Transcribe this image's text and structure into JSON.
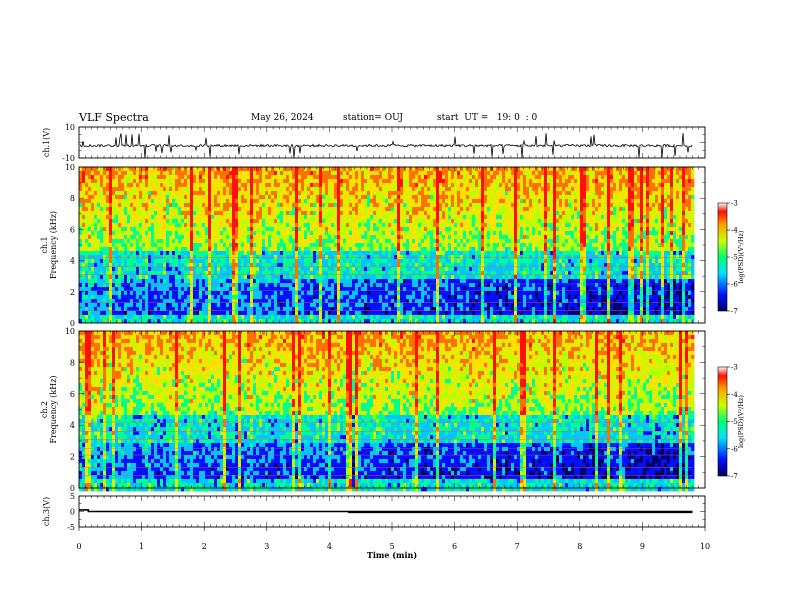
{
  "header": {
    "title": "VLF Spectra",
    "date": "May 26, 2024",
    "station": "station= OUJ",
    "start": "start  UT =   19: 0  : 0"
  },
  "chart_data": [
    {
      "type": "line",
      "name": "ch1-waveform",
      "ylabel": "ch.1(V)",
      "ylim": [
        -10,
        10
      ],
      "yticks": [
        "10",
        "-10"
      ],
      "baseline": -2,
      "xlim": [
        0,
        10
      ]
    },
    {
      "type": "heatmap",
      "name": "ch1-spectrogram",
      "ylabel": "ch.1 Frequency (kHz)",
      "ylabel_lines": [
        "ch.1",
        "Frequency  (kHz)"
      ],
      "ylim": [
        0,
        10
      ],
      "yticks": [
        "0",
        "2",
        "4",
        "6",
        "8",
        "10"
      ],
      "xlim": [
        0,
        9.8
      ],
      "colorbar": {
        "label": "log(PSD)(V²/Hz)",
        "range": [
          -7,
          -3
        ],
        "ticks": [
          "-3",
          "-4",
          "-5",
          "-6",
          "-7"
        ]
      }
    },
    {
      "type": "heatmap",
      "name": "ch2-spectrogram",
      "ylabel": "ch.2 Frequency (kHz)",
      "ylabel_lines": [
        "ch.2",
        "Frequency  (kHz)"
      ],
      "ylim": [
        0,
        10
      ],
      "yticks": [
        "0",
        "2",
        "4",
        "6",
        "8",
        "10"
      ],
      "xlim": [
        0,
        9.8
      ],
      "colorbar": {
        "label": "log(PSD)(V²/Hz)",
        "range": [
          -7,
          -3
        ],
        "ticks": [
          "-3",
          "-4",
          "-5",
          "-6",
          "-7"
        ]
      }
    },
    {
      "type": "line",
      "name": "ch3-signal",
      "ylabel": "ch.3(V)",
      "ylim": [
        -5,
        5
      ],
      "yticks": [
        "5",
        "0",
        "-5"
      ],
      "x": [
        0,
        0.15,
        0.15,
        4.3,
        4.3,
        9.8
      ],
      "y": [
        0.5,
        0.5,
        0,
        0,
        0,
        0
      ],
      "xlabel": "Time  (min)",
      "xlim": [
        0,
        10
      ],
      "xticks": [
        "0",
        "1",
        "2",
        "3",
        "4",
        "5",
        "6",
        "7",
        "8",
        "9",
        "10"
      ]
    }
  ]
}
